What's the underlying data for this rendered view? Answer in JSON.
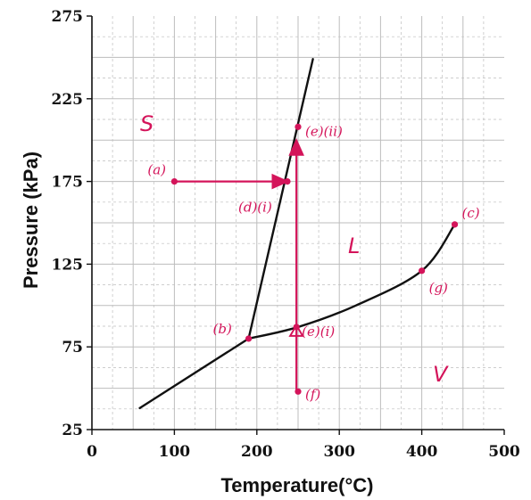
{
  "chart_data": {
    "type": "line",
    "title": "",
    "xlabel": "Temperature(°C)",
    "ylabel": "Pressure (kPa)",
    "xlim": [
      0,
      500
    ],
    "ylim": [
      25,
      275
    ],
    "x_ticks": [
      "0",
      "100",
      "200",
      "300",
      "400",
      "500"
    ],
    "y_ticks": [
      "25",
      "75",
      "125",
      "175",
      "225",
      "275"
    ],
    "grid": true,
    "series": [
      {
        "curve": "solid-vapor",
        "points": [
          [
            58,
            38
          ],
          [
            190,
            80
          ]
        ]
      },
      {
        "curve": "solid-liquid",
        "points": [
          [
            190,
            80
          ],
          [
            268,
            249
          ]
        ]
      },
      {
        "curve": "liquid-vapor",
        "points": [
          [
            190,
            80
          ],
          [
            250,
            87
          ],
          [
            320,
            100
          ],
          [
            400,
            121
          ],
          [
            440,
            149
          ]
        ]
      }
    ],
    "regions": [
      "S",
      "L",
      "V"
    ],
    "points": [
      {
        "label": "(a)",
        "x": 100,
        "y": 175
      },
      {
        "label": "(b)",
        "x": 190,
        "y": 80
      },
      {
        "label": "(c)",
        "x": 440,
        "y": 149
      },
      {
        "label": "(d)(i)",
        "x": 237,
        "y": 175
      },
      {
        "label": "(e)(i)",
        "x": 248,
        "y": 87
      },
      {
        "label": "(e)(ii)",
        "x": 250,
        "y": 208
      },
      {
        "label": "(f)",
        "x": 250,
        "y": 48
      },
      {
        "label": "(g)",
        "x": 400,
        "y": 121
      }
    ],
    "arrows": [
      {
        "from": [
          100,
          175
        ],
        "to": [
          237,
          175
        ]
      },
      {
        "from": [
          248,
          48
        ],
        "to": [
          248,
          200
        ]
      }
    ],
    "accent_color": "#d4145a",
    "line_color": "#111111",
    "grid_color": "#bdbdbd"
  }
}
